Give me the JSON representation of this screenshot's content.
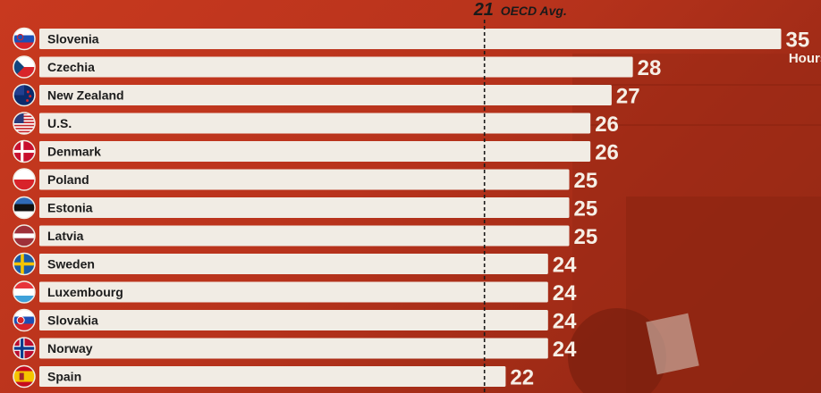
{
  "chart_data": {
    "type": "bar",
    "orientation": "horizontal",
    "categories": [
      "Slovenia",
      "Czechia",
      "New Zealand",
      "U.S.",
      "Denmark",
      "Poland",
      "Estonia",
      "Latvia",
      "Sweden",
      "Luxembourg",
      "Slovakia",
      "Norway",
      "Spain"
    ],
    "values": [
      35,
      28,
      27,
      26,
      26,
      25,
      25,
      25,
      24,
      24,
      24,
      24,
      22
    ],
    "value_unit_label": "Hours",
    "reference_line": {
      "value": 21,
      "number": "21",
      "label": "OECD Avg."
    },
    "flags": [
      "slovenia",
      "czechia",
      "new-zealand",
      "us",
      "denmark",
      "poland",
      "estonia",
      "latvia",
      "sweden",
      "luxembourg",
      "slovakia",
      "norway",
      "spain"
    ],
    "colors": {
      "bar": "#f1ece4",
      "background": "#b8331c",
      "value_text": "#f6efe6",
      "label_text": "#1c1c1c"
    }
  }
}
